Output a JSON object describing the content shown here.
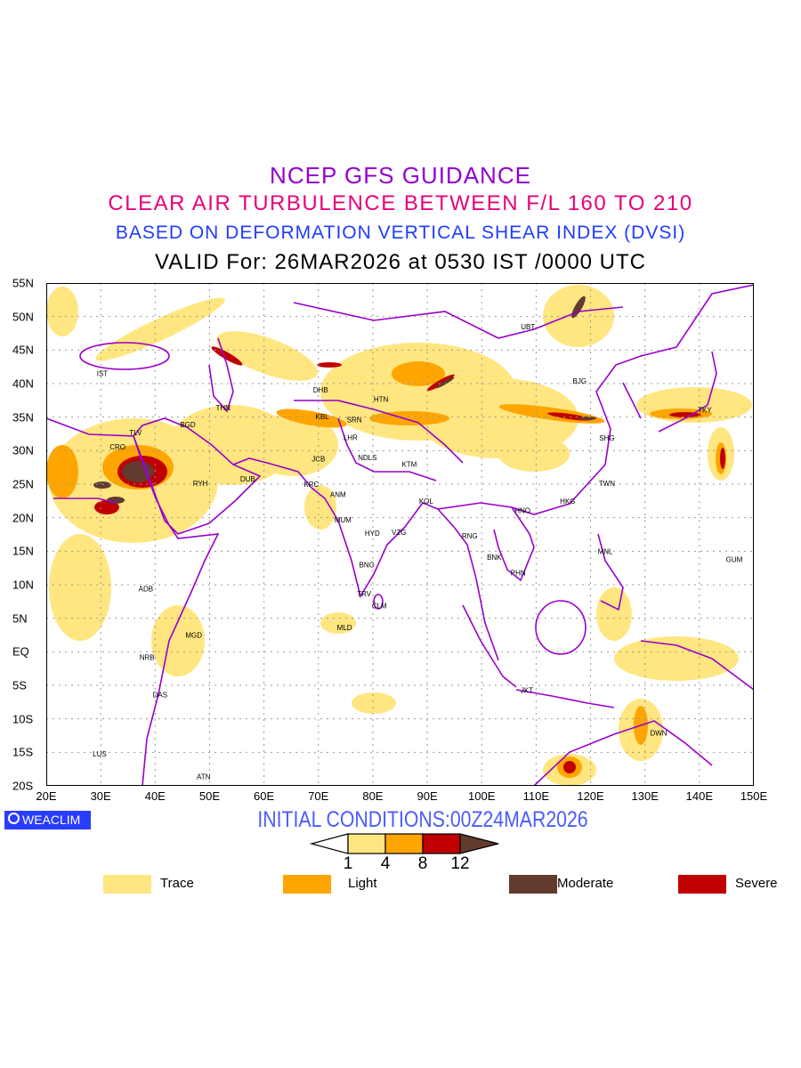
{
  "titles": {
    "line1": "NCEP GFS GUIDANCE",
    "line2": "CLEAR AIR TURBULENCE BETWEEN F/L 160 TO 210",
    "line3": "BASED ON DEFORMATION VERTICAL SHEAR INDEX (DVSI)",
    "line4": "VALID For: 26MAR2026 at 0530 IST /0000 UTC"
  },
  "map": {
    "lon_range": [
      20,
      150
    ],
    "lat_range": [
      -20,
      55
    ],
    "lon_labels": [
      "20E",
      "30E",
      "40E",
      "50E",
      "60E",
      "70E",
      "80E",
      "90E",
      "100E",
      "110E",
      "120E",
      "130E",
      "140E",
      "150E"
    ],
    "lat_labels": [
      "55N",
      "50N",
      "45N",
      "40N",
      "35N",
      "30N",
      "25N",
      "20N",
      "15N",
      "10N",
      "5N",
      "EQ",
      "5S",
      "10S",
      "15S",
      "20S"
    ],
    "colors": {
      "trace": "#FFE680",
      "light": "#FFA500",
      "severe": "#C00000",
      "moderate": "#633A2E",
      "border": "#9900CC"
    },
    "stations": [
      {
        "code": "UBT",
        "lon": 108.5,
        "lat": 48.5
      },
      {
        "code": "BJG",
        "lon": 118,
        "lat": 40.4
      },
      {
        "code": "TKY",
        "lon": 141,
        "lat": 36.1
      },
      {
        "code": "IST",
        "lon": 30.3,
        "lat": 41.5
      },
      {
        "code": "DHB",
        "lon": 70.4,
        "lat": 39.1
      },
      {
        "code": "HTN",
        "lon": 81.5,
        "lat": 37.7
      },
      {
        "code": "THN",
        "lon": 52.5,
        "lat": 36.4
      },
      {
        "code": "KBL",
        "lon": 70.7,
        "lat": 35.1
      },
      {
        "code": "SRN",
        "lon": 76.6,
        "lat": 34.6
      },
      {
        "code": "BGD",
        "lon": 46,
        "lat": 33.9
      },
      {
        "code": "TLV",
        "lon": 36.4,
        "lat": 32.7
      },
      {
        "code": "CRO",
        "lon": 33.1,
        "lat": 30.6
      },
      {
        "code": "LHR",
        "lon": 75.9,
        "lat": 32
      },
      {
        "code": "SHG",
        "lon": 123,
        "lat": 31.9
      },
      {
        "code": "JCB",
        "lon": 70,
        "lat": 28.8
      },
      {
        "code": "NDLS",
        "lon": 79,
        "lat": 29
      },
      {
        "code": "KTM",
        "lon": 86.7,
        "lat": 28
      },
      {
        "code": "RYH",
        "lon": 48.3,
        "lat": 25.1
      },
      {
        "code": "DUB",
        "lon": 57,
        "lat": 25.8
      },
      {
        "code": "KRC",
        "lon": 68.7,
        "lat": 25
      },
      {
        "code": "ANM",
        "lon": 73.6,
        "lat": 23.5
      },
      {
        "code": "TWN",
        "lon": 123,
        "lat": 25.1
      },
      {
        "code": "HKG",
        "lon": 115.8,
        "lat": 22.5
      },
      {
        "code": "KOL",
        "lon": 89.8,
        "lat": 22.5
      },
      {
        "code": "HNO",
        "lon": 107.5,
        "lat": 21.1
      },
      {
        "code": "MUM",
        "lon": 74.5,
        "lat": 19.7
      },
      {
        "code": "HYD",
        "lon": 79.9,
        "lat": 17.7
      },
      {
        "code": "VZG",
        "lon": 84.8,
        "lat": 17.8
      },
      {
        "code": "RNG",
        "lon": 97.8,
        "lat": 17.3
      },
      {
        "code": "BNK",
        "lon": 102.3,
        "lat": 14.1
      },
      {
        "code": "MNL",
        "lon": 122.7,
        "lat": 15
      },
      {
        "code": "GUM",
        "lon": 146.4,
        "lat": 13.8
      },
      {
        "code": "BNG",
        "lon": 78.9,
        "lat": 13
      },
      {
        "code": "PHN",
        "lon": 106.7,
        "lat": 11.8
      },
      {
        "code": "ADB",
        "lon": 38.3,
        "lat": 9.4
      },
      {
        "code": "TRV",
        "lon": 78.4,
        "lat": 8.7
      },
      {
        "code": "CLM",
        "lon": 81.2,
        "lat": 6.9
      },
      {
        "code": "MLD",
        "lon": 74.8,
        "lat": 3.6
      },
      {
        "code": "MGD",
        "lon": 47.1,
        "lat": 2.5
      },
      {
        "code": "NRB",
        "lon": 38.5,
        "lat": -0.8
      },
      {
        "code": "JKT",
        "lon": 108.3,
        "lat": -5.7
      },
      {
        "code": "DAS",
        "lon": 40.9,
        "lat": -6.4
      },
      {
        "code": "DWN",
        "lon": 132.5,
        "lat": -12.1
      },
      {
        "code": "LUS",
        "lon": 29.8,
        "lat": -15.2
      },
      {
        "code": "ATN",
        "lon": 48.9,
        "lat": -18.6
      }
    ]
  },
  "logo": "WEACLIM",
  "initial_conditions": "INITIAL CONDITIONS:00Z24MAR2026",
  "colorbar": {
    "ticks": [
      "1",
      "4",
      "8",
      "12"
    ]
  },
  "legend": [
    {
      "label": "Trace",
      "color": "#FFE680"
    },
    {
      "label": "Light",
      "color": "#FFA500"
    },
    {
      "label": "Moderate",
      "color": "#633A2E"
    },
    {
      "label": "Severe",
      "color": "#C00000"
    }
  ]
}
